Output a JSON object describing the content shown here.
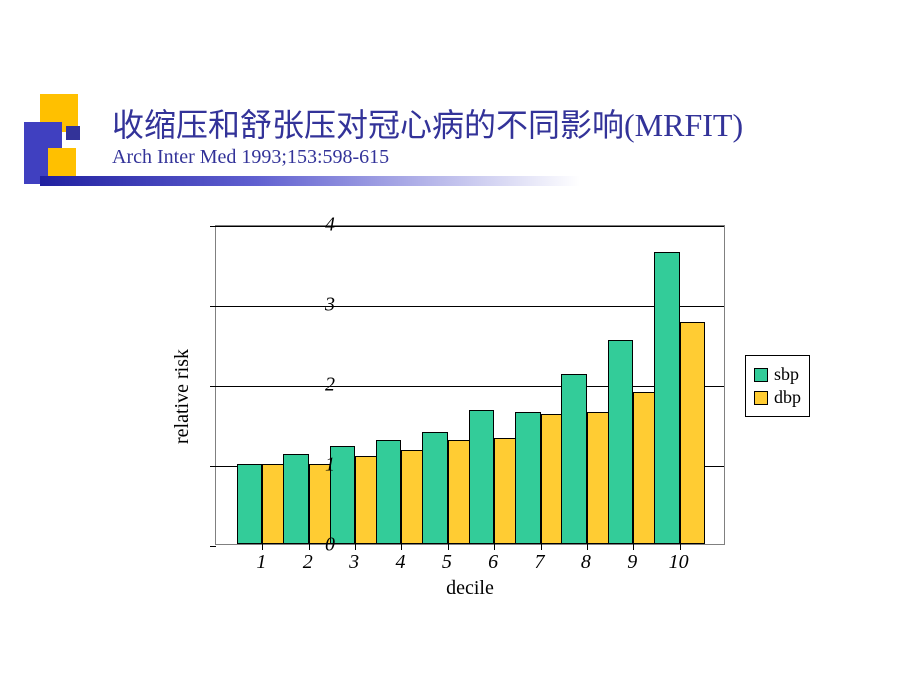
{
  "slide": {
    "title_main": "收缩压和舒张压对冠心病的不同影响(MRFIT)",
    "title_sub": "Arch Inter Med 1993;153:598-615",
    "title_color": "#333399",
    "title_fontsize": 32,
    "sub_fontsize": 20
  },
  "chart": {
    "type": "bar",
    "xlabel": "decile",
    "ylabel": "relative risk",
    "label_fontsize": 20,
    "categories": [
      "1",
      "2",
      "3",
      "4",
      "5",
      "6",
      "7",
      "8",
      "9",
      "10"
    ],
    "series": [
      {
        "name": "sbp",
        "color": "#33cc99",
        "values": [
          1.0,
          1.12,
          1.22,
          1.3,
          1.4,
          1.68,
          1.65,
          2.12,
          2.55,
          3.65
        ]
      },
      {
        "name": "dbp",
        "color": "#ffcc33",
        "values": [
          1.0,
          1.0,
          1.1,
          1.18,
          1.3,
          1.32,
          1.62,
          1.65,
          1.9,
          2.78
        ]
      }
    ],
    "ylim": [
      0,
      4
    ],
    "ytick_step": 1,
    "grid_color": "#000000",
    "tick_fontsize": 20,
    "tick_fontstyle": "italic",
    "border_color": "#808080",
    "background_color": "#ffffff",
    "bar_group_width": 0.55,
    "bar_border_color": "#000000"
  },
  "decoration": {
    "yellow": "#ffc000",
    "blue": "#4040c0",
    "gradient_from": "#2020a0",
    "gradient_to": "#ffffff"
  }
}
